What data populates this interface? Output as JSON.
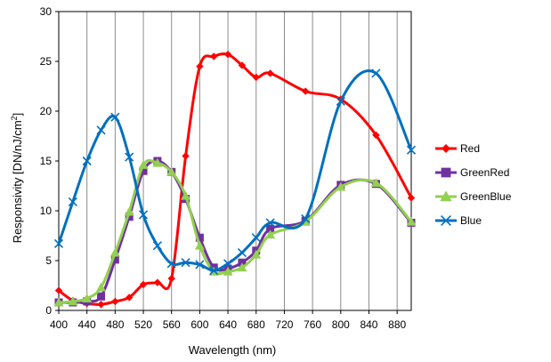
{
  "chart_data": {
    "type": "line",
    "title": "",
    "xlabel": "Wavelength (nm)",
    "ylabel": "Responsivity [DN/nJ/cm²]",
    "ylabel_main": "Responsivity [DN/nJ/cm",
    "ylabel_sup": "2",
    "ylabel_close": "]",
    "xlim": [
      400,
      900
    ],
    "ylim": [
      0,
      30
    ],
    "grid": "vertical",
    "legend_position": "right",
    "x_ticks": [
      400,
      440,
      480,
      520,
      560,
      600,
      640,
      680,
      720,
      760,
      800,
      840,
      880
    ],
    "y_ticks": [
      0,
      5,
      10,
      15,
      20,
      25,
      30
    ],
    "series": [
      {
        "name": "Red",
        "color": "#ff0000",
        "marker": "diamond",
        "x": [
          400,
          420,
          440,
          460,
          480,
          500,
          520,
          540,
          560,
          580,
          600,
          620,
          640,
          660,
          680,
          700,
          750,
          800,
          850,
          900
        ],
        "y": [
          2.0,
          1.0,
          0.7,
          0.6,
          0.9,
          1.3,
          2.6,
          2.8,
          3.2,
          15.5,
          24.5,
          25.5,
          25.7,
          24.6,
          23.4,
          23.8,
          22.0,
          21.2,
          17.6,
          11.3
        ]
      },
      {
        "name": "GreenRed",
        "color": "#7030a0",
        "marker": "square",
        "x": [
          400,
          420,
          440,
          460,
          480,
          500,
          520,
          540,
          560,
          580,
          600,
          620,
          640,
          660,
          680,
          700,
          750,
          800,
          850,
          900
        ],
        "y": [
          0.8,
          0.8,
          0.9,
          1.4,
          5.1,
          9.4,
          14.0,
          15.0,
          13.9,
          11.2,
          7.3,
          4.3,
          4.2,
          4.8,
          6.0,
          8.2,
          9.0,
          12.6,
          12.7,
          8.8
        ]
      },
      {
        "name": "GreenBlue",
        "color": "#92d050",
        "marker": "triangle",
        "x": [
          400,
          420,
          440,
          460,
          480,
          500,
          520,
          540,
          560,
          580,
          600,
          620,
          640,
          660,
          680,
          700,
          750,
          800,
          850,
          900
        ],
        "y": [
          0.8,
          0.9,
          1.2,
          2.3,
          5.8,
          9.9,
          14.6,
          14.8,
          13.9,
          11.5,
          6.5,
          3.9,
          3.9,
          4.3,
          5.6,
          7.6,
          8.9,
          12.4,
          12.8,
          8.9
        ]
      },
      {
        "name": "Blue",
        "color": "#0070c0",
        "marker": "x",
        "x": [
          400,
          420,
          440,
          460,
          480,
          500,
          520,
          540,
          560,
          580,
          600,
          620,
          640,
          660,
          680,
          700,
          750,
          800,
          850,
          900
        ],
        "y": [
          6.7,
          10.9,
          15.0,
          18.1,
          19.4,
          15.4,
          9.6,
          6.5,
          4.7,
          4.8,
          4.6,
          4.0,
          4.7,
          5.8,
          7.3,
          8.8,
          9.2,
          21.0,
          23.8,
          16.1
        ]
      }
    ]
  }
}
